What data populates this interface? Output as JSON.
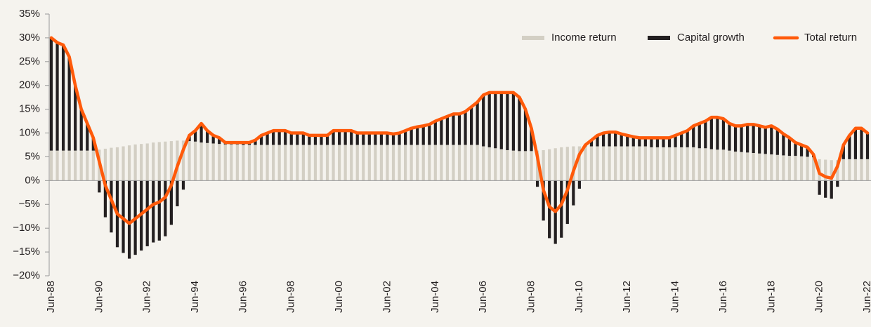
{
  "chart_data": {
    "type": "bar_line",
    "categories": [
      "Jun-88",
      null,
      null,
      null,
      null,
      null,
      null,
      null,
      "Jun-90",
      null,
      null,
      null,
      null,
      null,
      null,
      null,
      "Jun-92",
      null,
      null,
      null,
      null,
      null,
      null,
      null,
      "Jun-94",
      null,
      null,
      null,
      null,
      null,
      null,
      null,
      "Jun-96",
      null,
      null,
      null,
      null,
      null,
      null,
      null,
      "Jun-98",
      null,
      null,
      null,
      null,
      null,
      null,
      null,
      "Jun-00",
      null,
      null,
      null,
      null,
      null,
      null,
      null,
      "Jun-02",
      null,
      null,
      null,
      null,
      null,
      null,
      null,
      "Jun-04",
      null,
      null,
      null,
      null,
      null,
      null,
      null,
      "Jun-06",
      null,
      null,
      null,
      null,
      null,
      null,
      null,
      "Jun-08",
      null,
      null,
      null,
      null,
      null,
      null,
      null,
      "Jun-10",
      null,
      null,
      null,
      null,
      null,
      null,
      null,
      "Jun-12",
      null,
      null,
      null,
      null,
      null,
      null,
      null,
      "Jun-14",
      null,
      null,
      null,
      null,
      null,
      null,
      null,
      "Jun-16",
      null,
      null,
      null,
      null,
      null,
      null,
      null,
      "Jun-18",
      null,
      null,
      null,
      null,
      null,
      null,
      null,
      "Jun-20",
      null,
      null,
      null,
      null,
      null,
      null,
      null,
      "Jun-22"
    ],
    "series": [
      {
        "name": "Income return",
        "kind": "bar",
        "color": "#d3cfc4",
        "values": [
          6.3,
          6.3,
          6.3,
          6.3,
          6.3,
          6.3,
          6.3,
          6.3,
          6.5,
          6.7,
          6.9,
          7.0,
          7.2,
          7.4,
          7.6,
          7.7,
          7.8,
          8.0,
          8.1,
          8.2,
          8.3,
          8.4,
          8.4,
          8.3,
          8.2,
          8.0,
          7.9,
          7.8,
          7.7,
          7.6,
          7.6,
          7.6,
          7.5,
          7.5,
          7.5,
          7.5,
          7.5,
          7.5,
          7.5,
          7.5,
          7.5,
          7.5,
          7.5,
          7.5,
          7.5,
          7.5,
          7.5,
          7.5,
          7.5,
          7.5,
          7.5,
          7.5,
          7.5,
          7.5,
          7.5,
          7.5,
          7.5,
          7.5,
          7.5,
          7.5,
          7.5,
          7.5,
          7.5,
          7.5,
          7.5,
          7.5,
          7.5,
          7.5,
          7.5,
          7.5,
          7.5,
          7.5,
          7.2,
          7.0,
          6.8,
          6.6,
          6.4,
          6.3,
          6.2,
          6.2,
          6.2,
          6.3,
          6.4,
          6.6,
          6.8,
          7.0,
          7.1,
          7.2,
          7.2,
          7.2,
          7.2,
          7.2,
          7.2,
          7.2,
          7.2,
          7.2,
          7.2,
          7.2,
          7.2,
          7.2,
          7.0,
          7.0,
          7.0,
          7.0,
          7.0,
          7.0,
          7.0,
          7.0,
          6.8,
          6.8,
          6.6,
          6.5,
          6.5,
          6.3,
          6.1,
          6.0,
          5.9,
          5.8,
          5.7,
          5.6,
          5.5,
          5.4,
          5.3,
          5.2,
          5.2,
          5.1,
          5.0,
          4.9,
          4.5,
          4.4,
          4.3,
          4.3,
          4.5,
          4.5,
          4.5,
          4.5,
          4.5
        ]
      },
      {
        "name": "Capital growth",
        "kind": "bar",
        "color": "#231f20",
        "values": [
          23.7,
          22.7,
          22.2,
          19.7,
          13.7,
          8.7,
          5.7,
          2.7,
          -2.5,
          -7.7,
          -10.9,
          -14.0,
          -15.2,
          -16.4,
          -15.6,
          -14.7,
          -13.8,
          -13.0,
          -12.6,
          -11.7,
          -9.3,
          -5.4,
          -1.9,
          1.2,
          2.3,
          4.0,
          2.6,
          1.7,
          1.3,
          0.4,
          0.4,
          0.4,
          0.5,
          0.5,
          1.0,
          2.0,
          2.5,
          3.0,
          3.0,
          3.0,
          2.5,
          2.5,
          2.5,
          2.0,
          2.0,
          2.0,
          2.0,
          3.0,
          3.0,
          3.0,
          3.0,
          2.5,
          2.5,
          2.5,
          2.5,
          2.5,
          2.5,
          2.3,
          2.5,
          3.0,
          3.5,
          3.8,
          4.0,
          4.3,
          5.0,
          5.5,
          6.0,
          6.5,
          6.5,
          7.0,
          8.0,
          9.0,
          10.8,
          11.5,
          11.7,
          11.9,
          12.1,
          12.2,
          11.3,
          8.8,
          4.8,
          -1.3,
          -8.4,
          -12.1,
          -13.3,
          -12.0,
          -9.1,
          -5.2,
          -1.7,
          0.3,
          1.3,
          2.3,
          2.8,
          3.0,
          3.0,
          2.6,
          2.3,
          2.0,
          1.8,
          1.8,
          2.0,
          2.0,
          2.0,
          2.0,
          2.5,
          3.0,
          3.5,
          4.5,
          5.2,
          5.7,
          6.7,
          6.8,
          6.5,
          5.7,
          5.4,
          5.5,
          5.9,
          6.0,
          5.8,
          5.6,
          6.0,
          5.4,
          4.5,
          3.8,
          2.8,
          2.4,
          2.0,
          0.6,
          -3.0,
          -3.6,
          -3.8,
          -1.3,
          3.0,
          5.0,
          6.5,
          6.5,
          5.5
        ]
      },
      {
        "name": "Total return",
        "kind": "line",
        "color": "#ff5a0a",
        "values": [
          30,
          29,
          28.5,
          26,
          20,
          15,
          12,
          9,
          4,
          -1,
          -4,
          -7,
          -8,
          -9,
          -8,
          -7,
          -6,
          -5,
          -4.5,
          -3.5,
          -1,
          3,
          6.5,
          9.5,
          10.5,
          12,
          10.5,
          9.5,
          9,
          8,
          8,
          8,
          8,
          8,
          8.5,
          9.5,
          10,
          10.5,
          10.5,
          10.5,
          10,
          10,
          10,
          9.5,
          9.5,
          9.5,
          9.5,
          10.5,
          10.5,
          10.5,
          10.5,
          10,
          10,
          10,
          10,
          10,
          10,
          9.8,
          10,
          10.5,
          11,
          11.3,
          11.5,
          11.8,
          12.5,
          13,
          13.5,
          14,
          14,
          14.5,
          15.5,
          16.5,
          18,
          18.5,
          18.5,
          18.5,
          18.5,
          18.5,
          17.5,
          15,
          11,
          5,
          -2,
          -5.5,
          -6.5,
          -5,
          -2,
          2,
          5.5,
          7.5,
          8.5,
          9.5,
          10,
          10.2,
          10.2,
          9.8,
          9.5,
          9.2,
          9,
          9,
          9,
          9,
          9,
          9,
          9.5,
          10,
          10.5,
          11.5,
          12,
          12.5,
          13.3,
          13.3,
          13,
          12,
          11.5,
          11.5,
          11.8,
          11.8,
          11.5,
          11.2,
          11.5,
          10.8,
          9.8,
          9,
          8,
          7.5,
          7,
          5.5,
          1.5,
          0.8,
          0.5,
          3,
          7.5,
          9.5,
          11,
          11,
          10
        ]
      }
    ],
    "ylim": [
      -20,
      35
    ],
    "yticks": [
      {
        "value": -20,
        "label": "−20%"
      },
      {
        "value": -15,
        "label": "−15%"
      },
      {
        "value": -10,
        "label": "−10%"
      },
      {
        "value": -5,
        "label": "−5%"
      },
      {
        "value": 0,
        "label": "0%"
      },
      {
        "value": 5,
        "label": "5%"
      },
      {
        "value": 10,
        "label": "10%"
      },
      {
        "value": 15,
        "label": "15%"
      },
      {
        "value": 20,
        "label": "20%"
      },
      {
        "value": 25,
        "label": "25%"
      },
      {
        "value": 30,
        "label": "30%"
      },
      {
        "value": 35,
        "label": "35%"
      }
    ],
    "legend": "upper right"
  }
}
